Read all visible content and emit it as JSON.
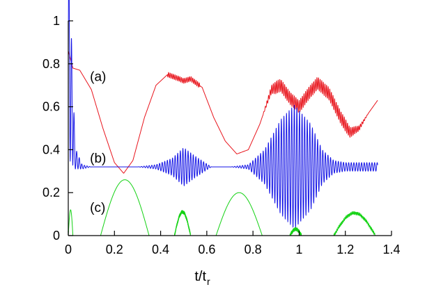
{
  "chart_data": {
    "type": "line",
    "title": "",
    "xlabel_main": "t/t",
    "xlabel_sub": "r",
    "ylabel": "",
    "xlim": [
      0,
      1.4
    ],
    "ylim": [
      0,
      1
    ],
    "grid": false,
    "x_ticks": [
      "0",
      "0.2",
      "0.4",
      "0.6",
      "0.8",
      "1",
      "1.2",
      "1.4"
    ],
    "y_ticks": [
      "0",
      "0.2",
      "0.4",
      "0.6",
      "0.8",
      "1"
    ],
    "annotations": [
      {
        "text": "(a)",
        "x": 0.1,
        "y": 0.74
      },
      {
        "text": "(b)",
        "x": 0.1,
        "y": 0.36
      },
      {
        "text": "(c)",
        "x": 0.1,
        "y": 0.13
      }
    ],
    "series": [
      {
        "color": "#e8141c",
        "x": [
          0,
          0.02,
          0.05,
          0.1,
          0.15,
          0.2,
          0.24,
          0.28,
          0.33,
          0.38,
          0.43,
          0.48,
          0.5,
          0.53,
          0.58,
          0.63,
          0.68,
          0.73,
          0.78,
          0.83,
          0.88,
          0.92,
          0.96,
          1.0,
          1.04,
          1.08,
          1.13,
          1.18,
          1.22,
          1.26,
          1.3,
          1.34
        ],
        "y": [
          0.86,
          0.78,
          0.77,
          0.68,
          0.5,
          0.34,
          0.29,
          0.35,
          0.55,
          0.7,
          0.75,
          0.73,
          0.72,
          0.73,
          0.69,
          0.55,
          0.44,
          0.38,
          0.4,
          0.52,
          0.68,
          0.7,
          0.64,
          0.6,
          0.66,
          0.71,
          0.66,
          0.55,
          0.48,
          0.5,
          0.57,
          0.63
        ]
      },
      {
        "color": "#1414e6",
        "x": [
          0,
          0.03,
          0.06,
          0.1,
          0.2,
          0.3,
          0.38,
          0.45,
          0.5,
          0.55,
          0.62,
          0.7,
          0.78,
          0.85,
          0.92,
          0.98,
          1.05,
          1.1,
          1.15,
          1.2,
          1.28,
          1.34
        ],
        "y": [
          0.86,
          0.36,
          0.32,
          0.32,
          0.32,
          0.32,
          0.32,
          0.32,
          0.32,
          0.32,
          0.32,
          0.32,
          0.32,
          0.32,
          0.32,
          0.32,
          0.32,
          0.32,
          0.32,
          0.32,
          0.32,
          0.32
        ],
        "envelope": [
          0.5,
          0.05,
          0.01,
          0.0,
          0.0,
          0.0,
          0.01,
          0.04,
          0.09,
          0.05,
          0.0,
          0.0,
          0.01,
          0.08,
          0.22,
          0.29,
          0.2,
          0.08,
          0.03,
          0.02,
          0.02,
          0.02
        ]
      },
      {
        "color": "#14d214",
        "arches": [
          {
            "x": [
              0.0,
              0.02
            ],
            "peak": 0.12
          },
          {
            "x": [
              0.14,
              0.35
            ],
            "peak": 0.26
          },
          {
            "x": [
              0.46,
              0.53
            ],
            "peak": 0.11
          },
          {
            "x": [
              0.64,
              0.84
            ],
            "peak": 0.2
          },
          {
            "x": [
              0.96,
              1.01
            ],
            "peak": 0.03
          },
          {
            "x": [
              1.15,
              1.33
            ],
            "peak": 0.105
          }
        ]
      }
    ]
  }
}
